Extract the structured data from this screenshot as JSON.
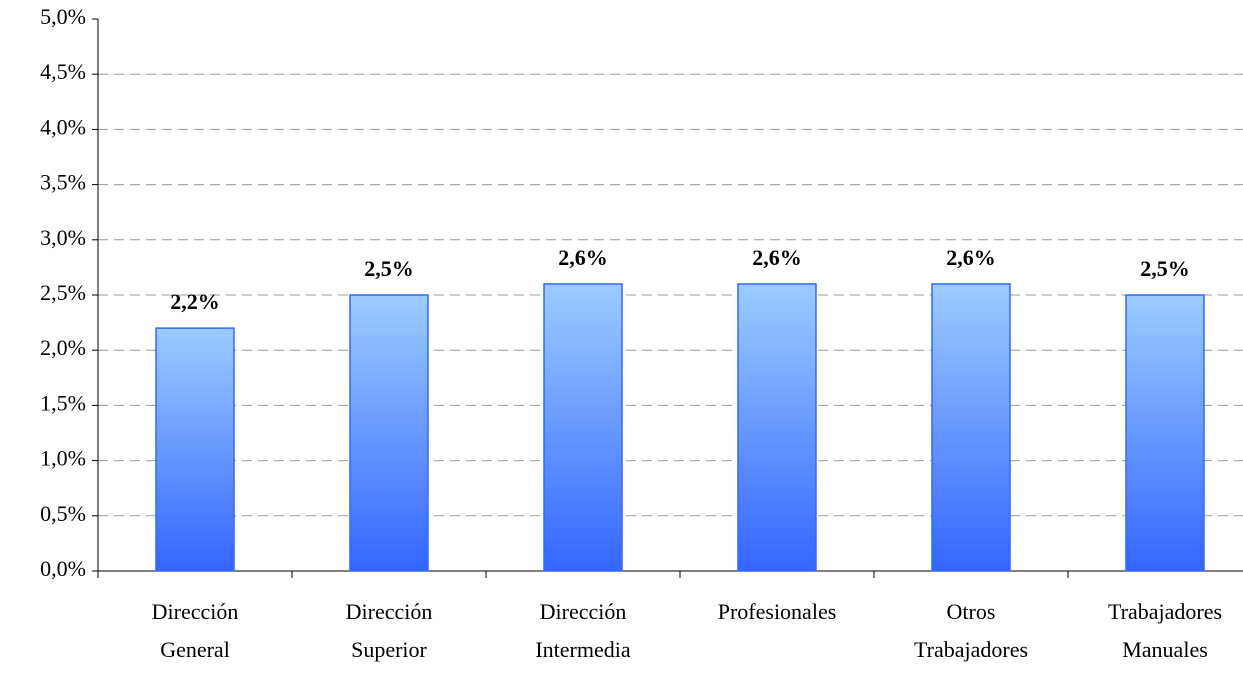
{
  "chart_data": {
    "type": "bar",
    "categories": [
      [
        "Dirección",
        "General"
      ],
      [
        "Dirección",
        "Superior"
      ],
      [
        "Dirección",
        "Intermedia"
      ],
      [
        "Profesionales"
      ],
      [
        "Otros",
        "Trabajadores"
      ],
      [
        "Trabajadores",
        "Manuales"
      ]
    ],
    "values": [
      2.2,
      2.5,
      2.6,
      2.6,
      2.6,
      2.5
    ],
    "value_labels": [
      "2,2%",
      "2,5%",
      "2,6%",
      "2,6%",
      "2,6%",
      "2,5%"
    ],
    "color": "#3366ff",
    "ylim": [
      0,
      5
    ],
    "yticks": [
      {
        "value": 0,
        "label": "0,0%"
      },
      {
        "value": 0.5,
        "label": "0,5%"
      },
      {
        "value": 1,
        "label": "1,0%"
      },
      {
        "value": 1.5,
        "label": "1,5%"
      },
      {
        "value": 2,
        "label": "2,0%"
      },
      {
        "value": 2.5,
        "label": "2,5%"
      },
      {
        "value": 3,
        "label": "3,0%"
      },
      {
        "value": 3.5,
        "label": "3,5%"
      },
      {
        "value": 4,
        "label": "4,0%"
      },
      {
        "value": 4.5,
        "label": "4,5%"
      },
      {
        "value": 5,
        "label": "5,0%"
      }
    ],
    "grid": true
  }
}
